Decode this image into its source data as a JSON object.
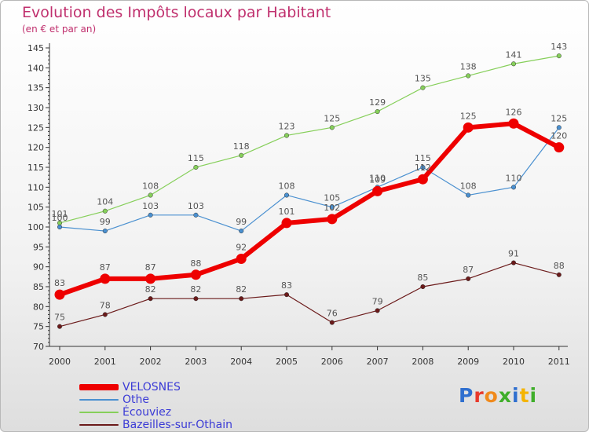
{
  "title": "Evolution des Impôts locaux par Habitant",
  "subtitle": "(en € et par an)",
  "logo": {
    "letters": [
      {
        "char": "P",
        "color": "#2f6fcf"
      },
      {
        "char": "r",
        "color": "#e8392b"
      },
      {
        "char": "o",
        "color": "#f08a1c"
      },
      {
        "char": "x",
        "color": "#3fae2a"
      },
      {
        "char": "i",
        "color": "#2f6fcf"
      },
      {
        "char": "t",
        "color": "#f4b400"
      },
      {
        "char": "i",
        "color": "#3fae2a"
      }
    ]
  },
  "chart_data": {
    "type": "line",
    "title": "Evolution des Impôts locaux par Habitant",
    "subtitle": "(en € et par an)",
    "x": [
      "2000",
      "2001",
      "2002",
      "2003",
      "2004",
      "2005",
      "2006",
      "2007",
      "2008",
      "2009",
      "2010",
      "2011"
    ],
    "ylim": [
      70,
      145
    ],
    "yticks": [
      70,
      75,
      80,
      85,
      90,
      95,
      100,
      105,
      110,
      115,
      120,
      125,
      130,
      135,
      140,
      145
    ],
    "grid": false,
    "legend_position": "bottom-left",
    "series": [
      {
        "name": "Écouviez",
        "color": "#86cf5a",
        "line_width": 1.2,
        "marker": 2.8,
        "values": [
          101,
          104,
          108,
          115,
          118,
          123,
          125,
          129,
          135,
          138,
          141,
          143
        ]
      },
      {
        "name": "Othe",
        "color": "#4a90d0",
        "line_width": 1.2,
        "marker": 2.8,
        "values": [
          100,
          99,
          103,
          103,
          99,
          108,
          105,
          110,
          115,
          108,
          110,
          125
        ]
      },
      {
        "name": "Bazeilles-sur-Othain",
        "color": "#6b1a1a",
        "line_width": 1.2,
        "marker": 2.8,
        "values": [
          75,
          78,
          82,
          82,
          82,
          83,
          76,
          79,
          85,
          87,
          91,
          88
        ]
      },
      {
        "name": "VELOSNES",
        "color": "#ee0000",
        "line_width": 6,
        "marker": 6.5,
        "values": [
          83,
          87,
          87,
          88,
          92,
          101,
          102,
          109,
          112,
          125,
          126,
          120
        ]
      }
    ]
  }
}
